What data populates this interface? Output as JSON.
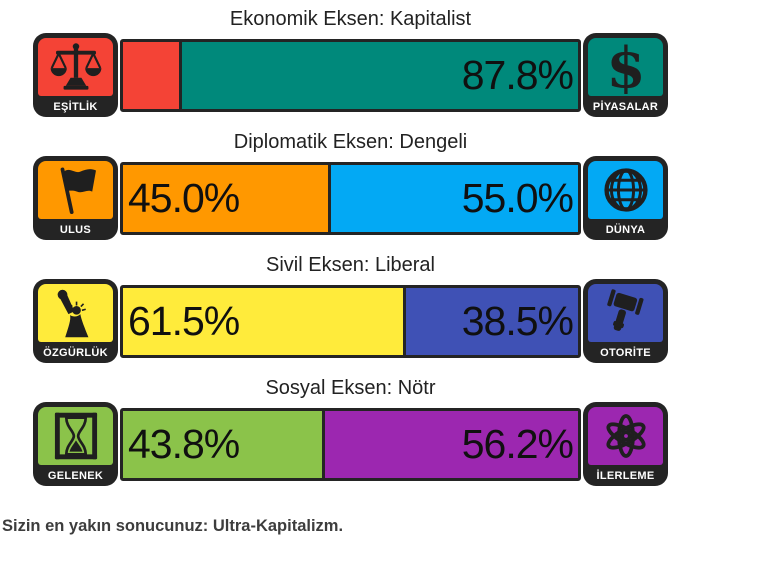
{
  "axes": [
    {
      "title": "Ekonomik Eksen: Kapitalist",
      "left": {
        "label": "EŞİTLİK",
        "icon": "scales-icon",
        "color": "#f44336",
        "percent": 12.2,
        "percent_label": ""
      },
      "right": {
        "label": "PİYASALAR",
        "icon": "dollar-icon",
        "color": "#00897b",
        "percent": 87.8,
        "percent_label": "87.8%"
      }
    },
    {
      "title": "Diplomatik Eksen: Dengeli",
      "left": {
        "label": "ULUS",
        "icon": "flag-icon",
        "color": "#ff9800",
        "percent": 45.0,
        "percent_label": "45.0%"
      },
      "right": {
        "label": "DÜNYA",
        "icon": "globe-icon",
        "color": "#03a9f4",
        "percent": 55.0,
        "percent_label": "55.0%"
      }
    },
    {
      "title": "Sivil Eksen: Liberal",
      "left": {
        "label": "ÖZGÜRLÜK",
        "icon": "statue-of-liberty-icon",
        "color": "#ffeb3b",
        "percent": 61.5,
        "percent_label": "61.5%"
      },
      "right": {
        "label": "OTORİTE",
        "icon": "gavel-icon",
        "color": "#3f51b5",
        "percent": 38.5,
        "percent_label": "38.5%"
      }
    },
    {
      "title": "Sosyal Eksen: Nötr",
      "left": {
        "label": "GELENEK",
        "icon": "hourglass-icon",
        "color": "#8bc34a",
        "percent": 43.8,
        "percent_label": "43.8%"
      },
      "right": {
        "label": "İLERLEME",
        "icon": "atom-icon",
        "color": "#9c27b0",
        "percent": 56.2,
        "percent_label": "56.2%"
      }
    }
  ],
  "result_text": "Sizin en yakın sonucunuz: Ultra-Kapitalizm.",
  "colors": {
    "frame": "#242424",
    "icon_glyph": "#1f1f1f",
    "label_text": "#ffffff",
    "percent_text": "#101010",
    "title_text": "#222222",
    "result_text": "#3d3d3d",
    "background": "#ffffff"
  },
  "chart_data": {
    "type": "bar",
    "orientation": "horizontal",
    "stacked": true,
    "units": "%",
    "xlim": [
      0,
      100
    ],
    "categories": [
      "Ekonomik Eksen: Kapitalist",
      "Diplomatik Eksen: Dengeli",
      "Sivil Eksen: Liberal",
      "Sosyal Eksen: Nötr"
    ],
    "series": [
      {
        "name": "left-pole",
        "labels": [
          "EŞİTLİK",
          "ULUS",
          "ÖZGÜRLÜK",
          "GELENEK"
        ],
        "values": [
          12.2,
          45.0,
          61.5,
          43.8
        ],
        "colors": [
          "#f44336",
          "#ff9800",
          "#ffeb3b",
          "#8bc34a"
        ]
      },
      {
        "name": "right-pole",
        "labels": [
          "PİYASALAR",
          "DÜNYA",
          "OTORİTE",
          "İLERLEME"
        ],
        "values": [
          87.8,
          55.0,
          38.5,
          56.2
        ],
        "colors": [
          "#00897b",
          "#03a9f4",
          "#3f51b5",
          "#9c27b0"
        ]
      }
    ],
    "value_labels_shown": [
      "87.8%",
      "45.0%",
      "55.0%",
      "61.5%",
      "38.5%",
      "43.8%",
      "56.2%"
    ],
    "annotation": "Sizin en yakın sonucunuz: Ultra-Kapitalizm.",
    "legend_position": "none",
    "grid": false
  }
}
